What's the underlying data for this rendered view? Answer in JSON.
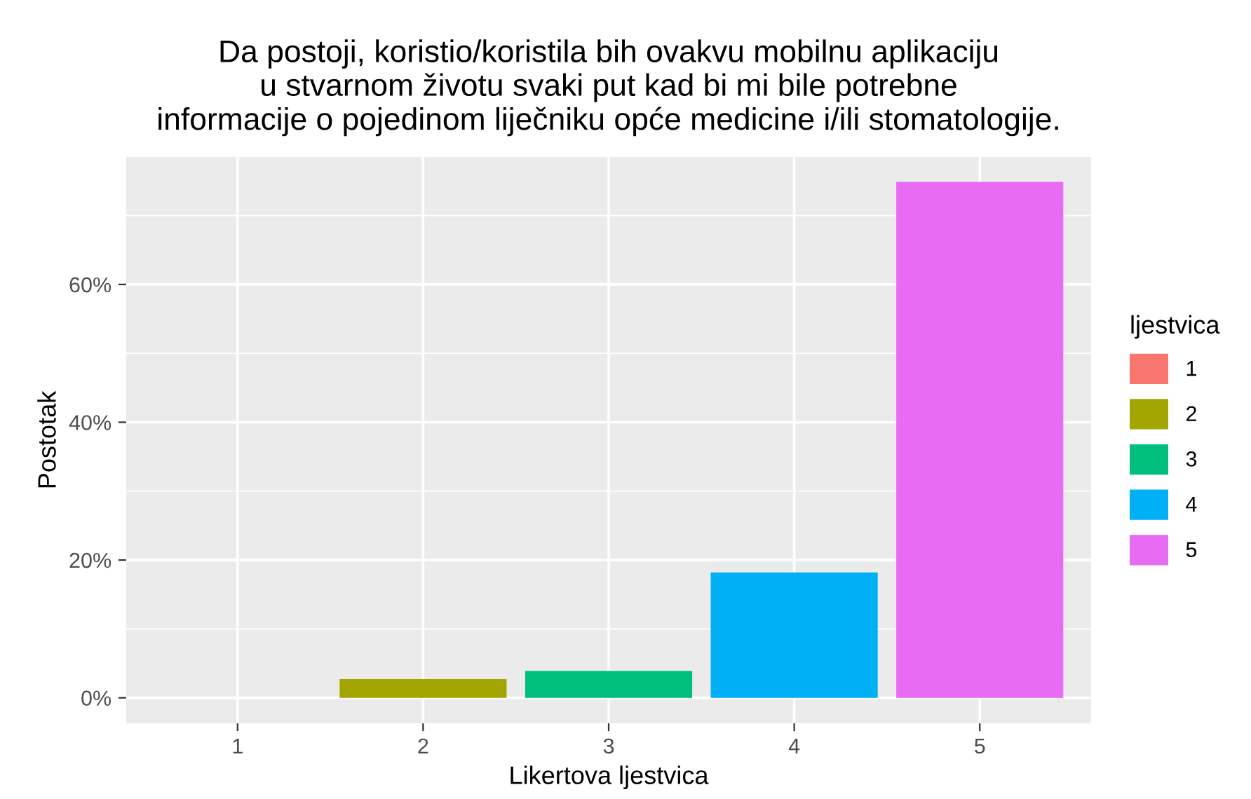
{
  "chart_data": {
    "type": "bar",
    "title": "Da postoji, koristio/koristila bih ovakvu mobilnu aplikaciju\nu stvarnom životu svaki put kad bi mi bile potrebne\ninformacije o pojedinom liječniku opće medicine i/ili stomatologije.",
    "xlabel": "Likertova ljestvica",
    "ylabel": "Postotak",
    "legend_title": "ljestvica",
    "categories": [
      "1",
      "2",
      "3",
      "4",
      "5"
    ],
    "series": [
      {
        "name": "1",
        "color": "#f8766d",
        "values": [
          0,
          null,
          null,
          null,
          null
        ]
      },
      {
        "name": "2",
        "color": "#a3a500",
        "values": [
          null,
          2.7,
          null,
          null,
          null
        ]
      },
      {
        "name": "3",
        "color": "#00bf7d",
        "values": [
          null,
          null,
          3.9,
          null,
          null
        ]
      },
      {
        "name": "4",
        "color": "#00b0f6",
        "values": [
          null,
          null,
          null,
          18.2,
          null
        ]
      },
      {
        "name": "5",
        "color": "#e76bf3",
        "values": [
          null,
          null,
          null,
          null,
          74.9
        ]
      }
    ],
    "ylim": [
      -3.7,
      78.5
    ],
    "yticks": [
      {
        "value": 0,
        "label": "0%"
      },
      {
        "value": 10,
        "label": null
      },
      {
        "value": 20,
        "label": "20%"
      },
      {
        "value": 30,
        "label": null
      },
      {
        "value": 40,
        "label": "40%"
      },
      {
        "value": 50,
        "label": null
      },
      {
        "value": 60,
        "label": "60%"
      },
      {
        "value": 70,
        "label": null
      }
    ],
    "grid": true,
    "legend": "right"
  }
}
